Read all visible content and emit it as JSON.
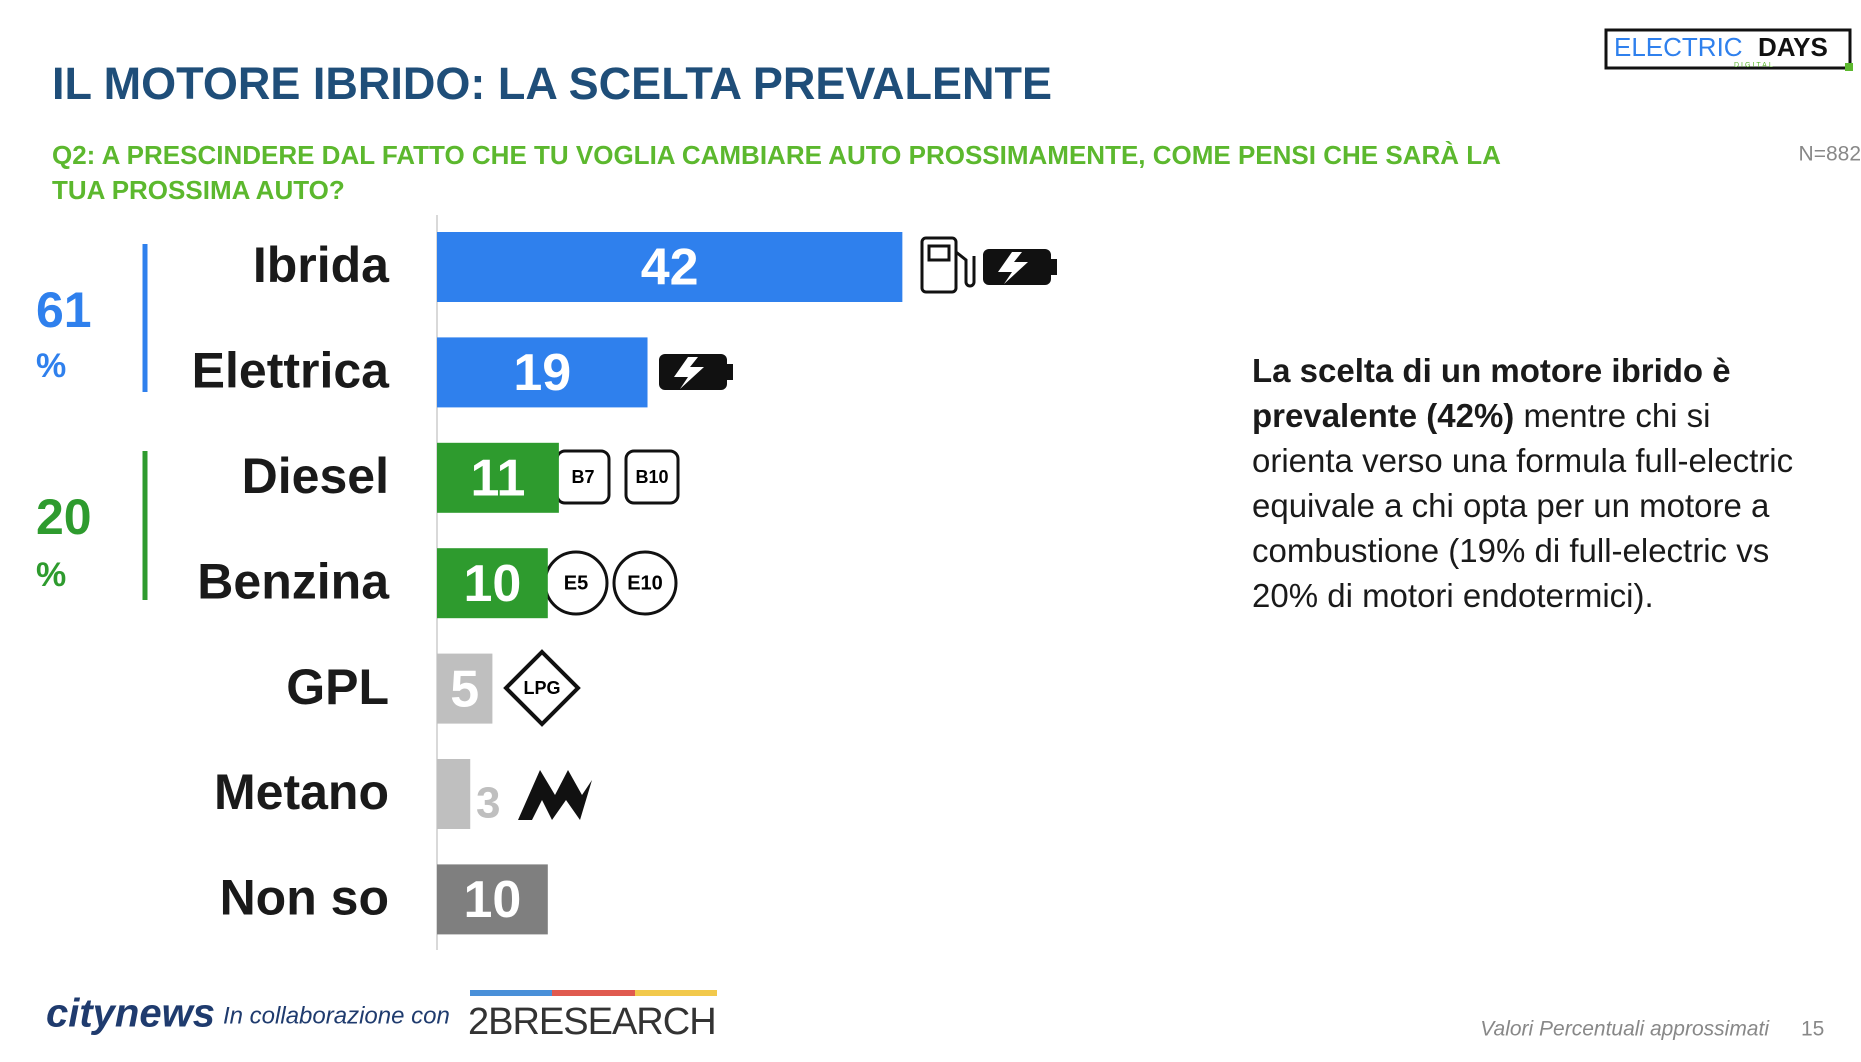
{
  "title": "IL MOTORE IBRIDO: LA SCELTA PREVALENTE",
  "subtitle": [
    "Q2: A PRESCINDERE DAL FATTO CHE TU VOGLIA CAMBIARE AUTO PROSSIMAMENTE, COME PENSI CHE SARÀ LA",
    "TUA PROSSIMA AUTO?"
  ],
  "sample": "N=882",
  "chart_data": {
    "type": "bar",
    "orientation": "horizontal",
    "categories": [
      "Ibrida",
      "Elettrica",
      "Diesel",
      "Benzina",
      "GPL",
      "Metano",
      "Non so"
    ],
    "values": [
      42,
      19,
      11,
      10,
      5,
      3,
      10
    ],
    "colors": [
      "#2f80ed",
      "#2f80ed",
      "#2e9b2e",
      "#2e9b2e",
      "#bfbfbf",
      "#bfbfbf",
      "#7f7f7f"
    ],
    "groups": [
      {
        "total": 61,
        "unit": "%",
        "color": "#2f80ed"
      },
      {
        "total": 20,
        "unit": "%",
        "color": "#2e9b2e"
      }
    ]
  },
  "badges": [
    "B7",
    "B10",
    "E5",
    "E10",
    "LPG"
  ],
  "paragraph": {
    "bold": "La scelta di un motore ibrido è prevalente (42%)",
    "text": "mentre chi si orienta verso una formula full-electric equivale a chi opta per un motore a combustione (19% di full-electric vs 20% di motori endotermici)."
  },
  "logo": {
    "electric": "ELECTRIC",
    "days": "DAYS",
    "digital": "DIGITAL"
  },
  "footer": {
    "brand": "citynews",
    "collab": "In collaborazione con",
    "partner": "2BRESEARCH",
    "note": "Valori Percentuali approssimati",
    "page": "15"
  }
}
